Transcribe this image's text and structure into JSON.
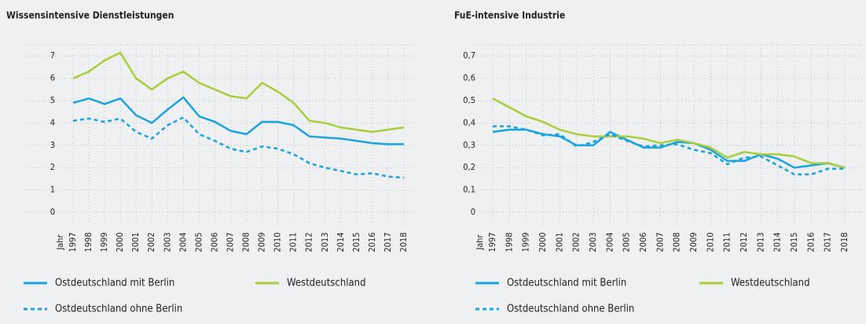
{
  "chart_data": [
    {
      "type": "line",
      "title": "Wissensintensive Dienstleistungen",
      "x_label": "Jahr",
      "categories": [
        "1997",
        "1998",
        "1999",
        "2000",
        "2001",
        "2002",
        "2003",
        "2004",
        "2005",
        "2006",
        "2007",
        "2008",
        "2009",
        "2010",
        "2011",
        "2012",
        "2013",
        "2014",
        "2015",
        "2016",
        "2017",
        "2018"
      ],
      "ylim": [
        0,
        7.5
      ],
      "yticks": [
        0,
        1,
        2,
        3,
        4,
        5,
        6,
        7
      ],
      "grid": true,
      "series": [
        {
          "name": "Ostdeutschland mit Berlin",
          "color": "#1aa3dd",
          "dashed": false,
          "values": [
            4.9,
            5.1,
            4.85,
            5.1,
            4.35,
            4.0,
            4.6,
            5.15,
            4.3,
            4.05,
            3.65,
            3.5,
            4.05,
            4.05,
            3.9,
            3.4,
            3.35,
            3.3,
            3.2,
            3.1,
            3.05,
            3.05
          ]
        },
        {
          "name": "Westdeutschland",
          "color": "#a8cd3b",
          "dashed": false,
          "values": [
            6.0,
            6.3,
            6.8,
            7.15,
            6.0,
            5.5,
            6.0,
            6.3,
            5.8,
            5.5,
            5.2,
            5.1,
            5.8,
            5.4,
            4.9,
            4.1,
            4.0,
            3.8,
            3.7,
            3.6,
            3.7,
            3.8
          ]
        },
        {
          "name": "Ostdeutschland ohne Berlin",
          "color": "#1aa3dd",
          "dashed": true,
          "values": [
            4.1,
            4.2,
            4.05,
            4.2,
            3.6,
            3.3,
            3.9,
            4.25,
            3.5,
            3.2,
            2.85,
            2.7,
            2.95,
            2.85,
            2.6,
            2.2,
            2.0,
            1.85,
            1.7,
            1.75,
            1.6,
            1.55
          ]
        }
      ]
    },
    {
      "type": "line",
      "title": "FuE-intensive Industrie",
      "x_label": "Jahr",
      "categories": [
        "1997",
        "1998",
        "1999",
        "2000",
        "2001",
        "2002",
        "2003",
        "2004",
        "2005",
        "2006",
        "2007",
        "2008",
        "2009",
        "2010",
        "2011",
        "2012",
        "2013",
        "2014",
        "2015",
        "2016",
        "2017",
        "2018"
      ],
      "ylim": [
        0,
        0.75
      ],
      "yticks": [
        0,
        {
          "value": 0.1,
          "label": "0,1"
        },
        {
          "value": 0.2,
          "label": "0,2"
        },
        {
          "value": 0.3,
          "label": "0,3"
        },
        {
          "value": 0.4,
          "label": "0,4"
        },
        {
          "value": 0.5,
          "label": "0,5"
        },
        {
          "value": 0.6,
          "label": "0,6"
        },
        {
          "value": 0.7,
          "label": "0,7"
        }
      ],
      "grid": true,
      "series": [
        {
          "name": "Ostdeutschland mit Berlin",
          "color": "#1aa3dd",
          "dashed": false,
          "values": [
            0.36,
            0.37,
            0.37,
            0.35,
            0.34,
            0.3,
            0.3,
            0.36,
            0.325,
            0.29,
            0.29,
            0.315,
            0.31,
            0.28,
            0.23,
            0.23,
            0.26,
            0.24,
            0.2,
            0.21,
            0.22,
            0.2
          ]
        },
        {
          "name": "Westdeutschland",
          "color": "#a8cd3b",
          "dashed": false,
          "values": [
            0.51,
            0.47,
            0.43,
            0.405,
            0.37,
            0.35,
            0.34,
            0.34,
            0.34,
            0.33,
            0.31,
            0.325,
            0.31,
            0.29,
            0.245,
            0.27,
            0.26,
            0.26,
            0.25,
            0.22,
            0.22,
            0.2
          ]
        },
        {
          "name": "Ostdeutschland ohne Berlin",
          "color": "#1aa3dd",
          "dashed": true,
          "values": [
            0.385,
            0.385,
            0.37,
            0.345,
            0.35,
            0.295,
            0.315,
            0.35,
            0.32,
            0.295,
            0.3,
            0.305,
            0.28,
            0.265,
            0.215,
            0.245,
            0.25,
            0.21,
            0.17,
            0.17,
            0.195,
            0.195
          ]
        }
      ]
    }
  ]
}
